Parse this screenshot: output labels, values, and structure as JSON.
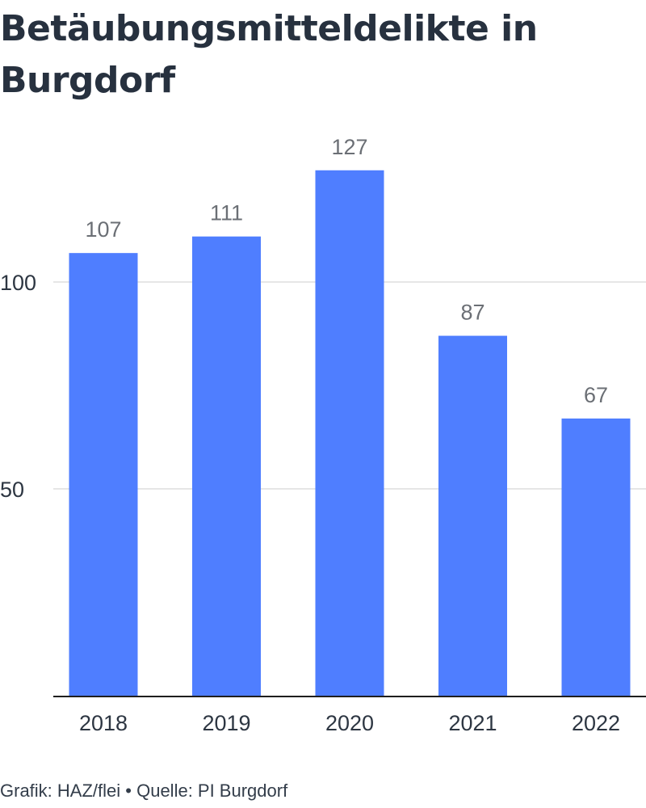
{
  "chart_data": {
    "type": "bar",
    "title": "Betäubungsmitteldelikte in Burgdorf",
    "categories": [
      "2018",
      "2019",
      "2020",
      "2021",
      "2022"
    ],
    "values": [
      107,
      111,
      127,
      87,
      67
    ],
    "yticks": [
      50,
      100
    ],
    "ylim": [
      0,
      137
    ],
    "grid": true,
    "xlabel": "",
    "ylabel": "",
    "bar_color": "#4f7eff",
    "axis_color": "#1f1f1f",
    "grid_color": "#dddddd"
  },
  "footer": {
    "credit": "Grafik: HAZ/flei",
    "separator": "•",
    "source": "Quelle: PI Burgdorf"
  }
}
